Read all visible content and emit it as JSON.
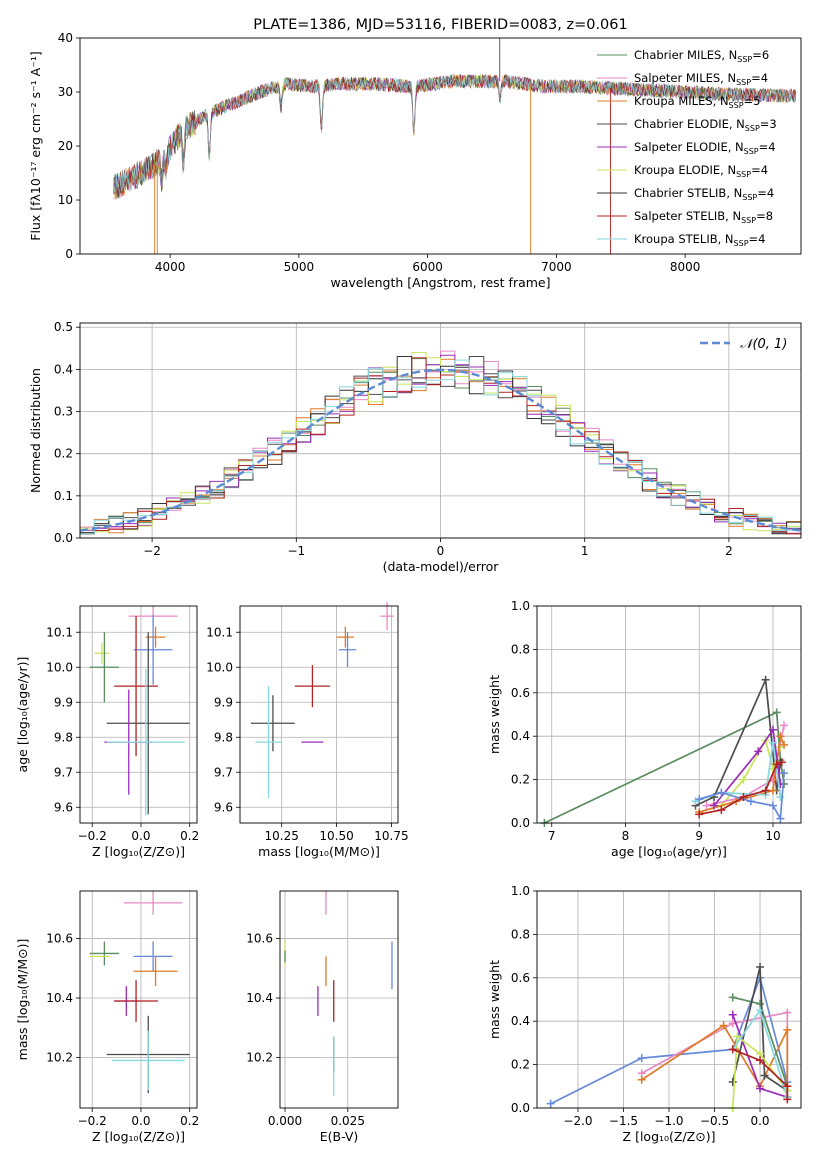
{
  "chart_data": [
    {
      "id": "spectrum",
      "type": "line",
      "title": "PLATE=1386, MJD=53116, FIBERID=0083, z=0.061",
      "xlabel": "wavelength [Angstrom, rest frame]",
      "ylabel": "Flux [fλ10⁻¹⁷ erg cm⁻² s⁻¹ A⁻¹]",
      "xlim": [
        3300,
        8900
      ],
      "ylim": [
        0,
        40
      ],
      "xticks": [
        "4000",
        "5000",
        "6000",
        "7000",
        "8000"
      ],
      "xtick_values": [
        4000,
        5000,
        6000,
        7000,
        8000
      ],
      "yticks": [
        "0",
        "10",
        "20",
        "30",
        "40"
      ],
      "ytick_values": [
        0,
        10,
        20,
        30,
        40
      ],
      "legend": [
        "Chabrier MILES, N",
        "Salpeter MILES, N",
        "Kroupa MILES, N",
        "Chabrier ELODIE, N",
        "Salpeter ELODIE, N",
        "Kroupa ELODIE, N",
        "Chabrier STELIB, N",
        "Salpeter STELIB, N",
        "Kroupa STELIB, N"
      ],
      "legend_sub": "SSP",
      "legend_values": [
        "=6",
        "=4",
        "=5",
        "=3",
        "=4",
        "=4",
        "=4",
        "=8",
        "=4"
      ],
      "legend_placement": "upper-right",
      "continuum": [
        [
          3550,
          12
        ],
        [
          3700,
          14
        ],
        [
          3850,
          16
        ],
        [
          3950,
          18
        ],
        [
          4100,
          23
        ],
        [
          4300,
          26
        ],
        [
          4500,
          28
        ],
        [
          4700,
          30
        ],
        [
          4900,
          31.5
        ],
        [
          5100,
          31
        ],
        [
          5300,
          31.5
        ],
        [
          5600,
          31.5
        ],
        [
          5900,
          31
        ],
        [
          6200,
          32
        ],
        [
          6600,
          32
        ],
        [
          6900,
          31
        ],
        [
          7200,
          31
        ],
        [
          7600,
          30.5
        ],
        [
          8000,
          30
        ],
        [
          8400,
          29.5
        ],
        [
          8800,
          29.3
        ]
      ],
      "absorption_lines": [
        [
          3934,
          4.0
        ],
        [
          3969,
          3.0
        ],
        [
          4102,
          6
        ],
        [
          4304,
          8
        ],
        [
          4861,
          4
        ],
        [
          5175,
          8
        ],
        [
          5893,
          8
        ],
        [
          6563,
          3
        ]
      ]
    },
    {
      "id": "residuals",
      "type": "histogram",
      "xlabel": "(data-model)/error",
      "ylabel": "Normed distribution",
      "xlim": [
        -2.5,
        2.5
      ],
      "ylim": [
        0,
        0.51
      ],
      "xticks": [
        "−2",
        "−1",
        "0",
        "1",
        "2"
      ],
      "xtick_values": [
        -2,
        -1,
        0,
        1,
        2
      ],
      "yticks": [
        "0.0",
        "0.1",
        "0.2",
        "0.3",
        "0.4",
        "0.5"
      ],
      "ytick_values": [
        0,
        0.1,
        0.2,
        0.3,
        0.4,
        0.5
      ],
      "legend": [
        {
          "label": "𝒩(0, 1)",
          "style": "dashed"
        }
      ],
      "legend_placement": "upper-right",
      "bin_width": 0.1,
      "bin_range": [
        -2.5,
        2.5
      ]
    },
    {
      "id": "age-vs-Z",
      "type": "scatter",
      "xlabel": "Z [log₁₀(Z/Z⊙)]",
      "ylabel": "age  [log₁₀(age/yr)]",
      "xlim": [
        -0.25,
        0.23
      ],
      "ylim": [
        9.555,
        10.175
      ],
      "xticks": [
        "−0.2",
        "0.0",
        "0.2"
      ],
      "xtick_values": [
        -0.2,
        0,
        0.2
      ],
      "yticks": [
        "9.6",
        "9.7",
        "9.8",
        "9.9",
        "10.0",
        "10.1"
      ],
      "ytick_values": [
        9.6,
        9.7,
        9.8,
        9.9,
        10.0,
        10.1
      ],
      "points": [
        {
          "x": 0.05,
          "y": 10.146,
          "xerr": 0.1,
          "yerr": 0.03,
          "color": "#e889c5"
        },
        {
          "x": 0.06,
          "y": 10.086,
          "xerr": 0.04,
          "yerr": 0.03,
          "color": "#e07a26"
        },
        {
          "x": -0.16,
          "y": 10.04,
          "xerr": 0.03,
          "yerr": 0.03,
          "color": "#c8e65a"
        },
        {
          "x": -0.15,
          "y": 10.0,
          "xerr": 0.06,
          "yerr": 0.1,
          "color": "#5a8c5f"
        },
        {
          "x": 0.05,
          "y": 10.05,
          "xerr": 0.08,
          "yerr": 0.1,
          "color": "#6689dc"
        },
        {
          "x": -0.02,
          "y": 9.946,
          "xerr": 0.09,
          "yerr": 0.2,
          "color": "#b22222"
        },
        {
          "x": 0.03,
          "y": 9.84,
          "xerr": 0.17,
          "yerr": 0.26,
          "color": "#4d4d4d"
        },
        {
          "x": -0.05,
          "y": 9.786,
          "xerr": 0.1,
          "yerr": 0.15,
          "color": "#9a2cb9"
        },
        {
          "x": 0.02,
          "y": 9.786,
          "xerr": 0.16,
          "yerr": 0.21,
          "color": "#87d7df"
        }
      ]
    },
    {
      "id": "age-vs-mass",
      "type": "scatter",
      "xlabel": "mass [log₁₀(M/M⊙)]",
      "ylabel": "",
      "xlim": [
        10.06,
        10.78
      ],
      "ylim": [
        9.555,
        10.175
      ],
      "xticks": [
        "10.25",
        "10.50",
        "10.75"
      ],
      "xtick_values": [
        10.25,
        10.5,
        10.75
      ],
      "yticks": [
        "9.6",
        "9.7",
        "9.8",
        "9.9",
        "10.0",
        "10.1"
      ],
      "ytick_values": [
        9.6,
        9.7,
        9.8,
        9.9,
        10.0,
        10.1
      ],
      "points": [
        {
          "x": 10.73,
          "y": 10.146,
          "xerr": 0.03,
          "yerr": 0.04,
          "color": "#e889c5"
        },
        {
          "x": 10.54,
          "y": 10.086,
          "xerr": 0.04,
          "yerr": 0.03,
          "color": "#e07a26"
        },
        {
          "x": 10.55,
          "y": 10.05,
          "xerr": 0.04,
          "yerr": 0.05,
          "color": "#6689dc"
        },
        {
          "x": 10.39,
          "y": 9.946,
          "xerr": 0.08,
          "yerr": 0.06,
          "color": "#b22222"
        },
        {
          "x": 10.21,
          "y": 9.84,
          "xerr": 0.1,
          "yerr": 0.08,
          "color": "#4d4d4d"
        },
        {
          "x": 10.39,
          "y": 9.786,
          "xerr": 0.05,
          "yerr": 0.0,
          "color": "#9a2cb9"
        },
        {
          "x": 10.19,
          "y": 9.786,
          "xerr": 0.06,
          "yerr": 0.16,
          "color": "#87d7df"
        }
      ]
    },
    {
      "id": "massweight-vs-age",
      "type": "line",
      "xlabel": "age  [log₁₀(age/yr)]",
      "ylabel": "mass weight",
      "xlim": [
        6.8,
        10.38
      ],
      "ylim": [
        0,
        1.0
      ],
      "xticks": [
        "7",
        "8",
        "9",
        "10"
      ],
      "xtick_values": [
        7,
        8,
        9,
        10
      ],
      "yticks": [
        "0.0",
        "0.2",
        "0.4",
        "0.6",
        "0.8",
        "1.0"
      ],
      "ytick_values": [
        0,
        0.2,
        0.4,
        0.6,
        0.8,
        1.0
      ],
      "series": [
        {
          "color": "#5a8c5f",
          "points": [
            [
              6.9,
              0.0
            ],
            [
              10.05,
              0.51
            ],
            [
              10.1,
              0.29
            ],
            [
              10.15,
              0.18
            ]
          ]
        },
        {
          "color": "#4d4d4d",
          "points": [
            [
              8.95,
              0.08
            ],
            [
              9.2,
              0.12
            ],
            [
              9.9,
              0.66
            ],
            [
              10.05,
              0.15
            ],
            [
              10.1,
              0.28
            ]
          ]
        },
        {
          "color": "#c8e65a",
          "points": [
            [
              9.0,
              0.05
            ],
            [
              9.3,
              0.08
            ],
            [
              9.6,
              0.2
            ],
            [
              9.9,
              0.38
            ],
            [
              10.0,
              0.25
            ],
            [
              10.1,
              0.35
            ]
          ]
        },
        {
          "color": "#e889c5",
          "points": [
            [
              9.1,
              0.08
            ],
            [
              9.6,
              0.12
            ],
            [
              10.0,
              0.2
            ],
            [
              10.15,
              0.45
            ]
          ]
        },
        {
          "color": "#e07a26",
          "points": [
            [
              9.0,
              0.05
            ],
            [
              9.5,
              0.1
            ],
            [
              10.0,
              0.15
            ],
            [
              10.1,
              0.4
            ],
            [
              10.15,
              0.36
            ]
          ]
        },
        {
          "color": "#9a2cb9",
          "points": [
            [
              9.2,
              0.08
            ],
            [
              9.8,
              0.33
            ],
            [
              10.0,
              0.43
            ],
            [
              10.1,
              0.18
            ]
          ]
        },
        {
          "color": "#87d7df",
          "points": [
            [
              8.95,
              0.1
            ],
            [
              9.3,
              0.14
            ],
            [
              9.9,
              0.13
            ],
            [
              10.0,
              0.37
            ],
            [
              10.1,
              0.12
            ]
          ]
        },
        {
          "color": "#6689dc",
          "points": [
            [
              9.0,
              0.11
            ],
            [
              9.3,
              0.14
            ],
            [
              9.7,
              0.1
            ],
            [
              10.0,
              0.08
            ],
            [
              10.1,
              0.02
            ],
            [
              10.15,
              0.23
            ]
          ]
        },
        {
          "color": "#b22222",
          "points": [
            [
              9.0,
              0.04
            ],
            [
              9.3,
              0.06
            ],
            [
              9.6,
              0.12
            ],
            [
              9.9,
              0.15
            ],
            [
              10.05,
              0.27
            ],
            [
              10.12,
              0.28
            ]
          ]
        }
      ]
    },
    {
      "id": "mass-vs-Z",
      "type": "scatter",
      "xlabel": "Z [log₁₀(Z/Z⊙)]",
      "ylabel": "mass [log₁₀(M/M⊙)]",
      "xlim": [
        -0.25,
        0.23
      ],
      "ylim": [
        10.03,
        10.76
      ],
      "xticks": [
        "−0.2",
        "0.0",
        "0.2"
      ],
      "xtick_values": [
        -0.2,
        0,
        0.2
      ],
      "yticks": [
        "10.2",
        "10.4",
        "10.6"
      ],
      "ytick_values": [
        10.2,
        10.4,
        10.6
      ],
      "points": [
        {
          "x": 0.05,
          "y": 10.72,
          "xerr": 0.12,
          "yerr": 0.04,
          "color": "#e889c5"
        },
        {
          "x": -0.15,
          "y": 10.55,
          "xerr": 0.06,
          "yerr": 0.04,
          "color": "#5a8c5f"
        },
        {
          "x": -0.17,
          "y": 10.54,
          "xerr": 0.04,
          "yerr": 0.0,
          "color": "#c8e65a"
        },
        {
          "x": 0.05,
          "y": 10.54,
          "xerr": 0.08,
          "yerr": 0.05,
          "color": "#6689dc"
        },
        {
          "x": 0.06,
          "y": 10.49,
          "xerr": 0.09,
          "yerr": 0.05,
          "color": "#e07a26"
        },
        {
          "x": -0.06,
          "y": 10.39,
          "xerr": 0.05,
          "yerr": 0.05,
          "color": "#9a2cb9"
        },
        {
          "x": -0.02,
          "y": 10.39,
          "xerr": 0.09,
          "yerr": 0.07,
          "color": "#b22222"
        },
        {
          "x": 0.03,
          "y": 10.21,
          "xerr": 0.17,
          "yerr": 0.13,
          "color": "#4d4d4d"
        },
        {
          "x": 0.03,
          "y": 10.19,
          "xerr": 0.15,
          "yerr": 0.1,
          "color": "#87d7df"
        }
      ]
    },
    {
      "id": "mass-vs-EBV",
      "type": "scatter",
      "xlabel": "E(B-V)",
      "ylabel": "",
      "xlim": [
        -0.002,
        0.045
      ],
      "ylim": [
        10.03,
        10.76
      ],
      "xticks": [
        "0.000",
        "0.025"
      ],
      "xtick_values": [
        0,
        0.025
      ],
      "yticks": [
        "10.2",
        "10.4",
        "10.6"
      ],
      "ytick_values": [
        10.2,
        10.4,
        10.6
      ],
      "points": [
        {
          "x": 0.0,
          "y": 10.55,
          "xerr": 0,
          "yerr": 0.04,
          "color": "#c8e65a"
        },
        {
          "x": 0.0,
          "y": 10.54,
          "xerr": 0,
          "yerr": 0.02,
          "color": "#5a8c5f"
        },
        {
          "x": 0.0163,
          "y": 10.72,
          "xerr": 0,
          "yerr": 0.04,
          "color": "#e889c5"
        },
        {
          "x": 0.0163,
          "y": 10.49,
          "xerr": 0,
          "yerr": 0.05,
          "color": "#e07a26"
        },
        {
          "x": 0.0131,
          "y": 10.39,
          "xerr": 0,
          "yerr": 0.05,
          "color": "#9a2cb9"
        },
        {
          "x": 0.0194,
          "y": 10.39,
          "xerr": 0,
          "yerr": 0.07,
          "color": "#b22222"
        },
        {
          "x": 0.0194,
          "y": 10.21,
          "xerr": 0,
          "yerr": 0.06,
          "color": "#4d4d4d"
        },
        {
          "x": 0.0194,
          "y": 10.17,
          "xerr": 0,
          "yerr": 0.1,
          "color": "#87d7df"
        },
        {
          "x": 0.0426,
          "y": 10.51,
          "xerr": 0,
          "yerr": 0.08,
          "color": "#6689dc"
        }
      ]
    },
    {
      "id": "massweight-vs-Z",
      "type": "line",
      "xlabel": "Z [log₁₀(Z/Z⊙)]",
      "ylabel": "mass weight",
      "xlim": [
        -2.45,
        0.45
      ],
      "ylim": [
        0,
        1.0
      ],
      "xticks": [
        "−2.0",
        "−1.5",
        "−1.0",
        "−0.5",
        "0.0"
      ],
      "xtick_values": [
        -2,
        -1.5,
        -1,
        -0.5,
        0
      ],
      "yticks": [
        "0.0",
        "0.2",
        "0.4",
        "0.6",
        "0.8",
        "1.0"
      ],
      "ytick_values": [
        0,
        0.2,
        0.4,
        0.6,
        0.8,
        1.0
      ],
      "series": [
        {
          "color": "#6689dc",
          "points": [
            [
              -2.3,
              0.02
            ],
            [
              -1.3,
              0.23
            ],
            [
              -0.3,
              0.27
            ],
            [
              0.0,
              0.6
            ],
            [
              0.3,
              0.12
            ]
          ]
        },
        {
          "color": "#e889c5",
          "points": [
            [
              -1.3,
              0.16
            ],
            [
              -0.3,
              0.39
            ],
            [
              0.3,
              0.44
            ],
            [
              0.3,
              0.05
            ]
          ]
        },
        {
          "color": "#e07a26",
          "points": [
            [
              -1.3,
              0.13
            ],
            [
              -0.4,
              0.38
            ],
            [
              0.0,
              0.1
            ],
            [
              0.3,
              0.36
            ],
            [
              0.3,
              0.05
            ]
          ]
        },
        {
          "color": "#5a8c5f",
          "points": [
            [
              -0.3,
              0.51
            ],
            [
              0.0,
              0.48
            ],
            [
              0.3,
              0.1
            ]
          ]
        },
        {
          "color": "#4d4d4d",
          "points": [
            [
              -0.3,
              0.12
            ],
            [
              0.0,
              0.65
            ],
            [
              0.05,
              0.15
            ],
            [
              0.3,
              0.08
            ]
          ]
        },
        {
          "color": "#9a2cb9",
          "points": [
            [
              -0.3,
              0.43
            ],
            [
              0.0,
              0.09
            ],
            [
              0.3,
              0.05
            ]
          ]
        },
        {
          "color": "#c8e65a",
          "points": [
            [
              -0.3,
              0.0
            ],
            [
              -0.25,
              0.33
            ],
            [
              0.0,
              0.25
            ],
            [
              0.3,
              0.08
            ]
          ]
        },
        {
          "color": "#87d7df",
          "points": [
            [
              -0.3,
              0.27
            ],
            [
              0.0,
              0.45
            ],
            [
              0.3,
              0.05
            ]
          ]
        },
        {
          "color": "#b22222",
          "points": [
            [
              -0.3,
              0.27
            ],
            [
              0.0,
              0.22
            ],
            [
              0.3,
              0.1
            ],
            [
              0.3,
              0.04
            ]
          ]
        }
      ]
    }
  ],
  "colors": {
    "chabrier_miles": "#5a8c5f",
    "salpeter_miles": "#e889c5",
    "kroupa_miles": "#e07a26",
    "chabrier_elodie": "#4d4d4d",
    "salpeter_elodie": "#9a2cb9",
    "kroupa_elodie": "#c8e65a",
    "chabrier_stelib": "#333333",
    "salpeter_stelib": "#b22222",
    "kroupa_stelib": "#87d7df",
    "normal_curve": "#5b8bd4",
    "grid": "#b0b0b0"
  }
}
